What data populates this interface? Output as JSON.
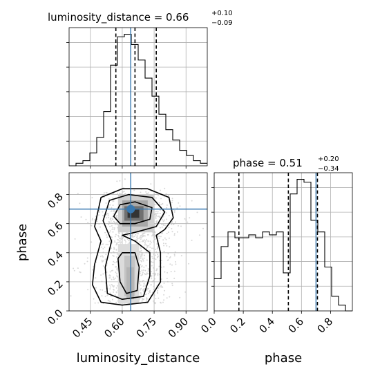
{
  "chart_data": {
    "type": "corner",
    "parameters": [
      "luminosity_distance",
      "phase"
    ],
    "titles": [
      {
        "name": "luminosity_distance",
        "value": "0.66",
        "plus": "+0.10",
        "minus": "−0.09",
        "prefix": "luminosity_distance = 0.66"
      },
      {
        "name": "phase",
        "value": "0.51",
        "plus": "+0.20",
        "minus": "−0.34",
        "prefix": "phase = 0.51"
      }
    ],
    "xlabels": [
      "luminosity_distance",
      "phase"
    ],
    "ylabel": "phase",
    "truths": {
      "luminosity_distance": 0.64,
      "phase": 0.7
    },
    "colors": {
      "truth": "#3878b0",
      "hist": "#000000",
      "scatter": "#bdbdbd"
    },
    "grid": true,
    "lum_hist": {
      "xlim": [
        0.35,
        1.0
      ],
      "quantiles": [
        0.57,
        0.66,
        0.76
      ],
      "xticks": [
        "0.45",
        "0.60",
        "0.75",
        "0.90"
      ],
      "tickvals": [
        0.45,
        0.6,
        0.75,
        0.9
      ],
      "edges": [
        0.35,
        0.3825,
        0.415,
        0.4475,
        0.48,
        0.5125,
        0.545,
        0.5775,
        0.61,
        0.6425,
        0.675,
        0.7075,
        0.74,
        0.7725,
        0.805,
        0.8375,
        0.87,
        0.9025,
        0.935,
        0.9675,
        1.0
      ],
      "counts": [
        0,
        2,
        4,
        10,
        22,
        42,
        78,
        100,
        102,
        94,
        82,
        68,
        54,
        40,
        28,
        20,
        12,
        8,
        4,
        2
      ]
    },
    "phase_hist": {
      "xlim": [
        0.0,
        0.95
      ],
      "quantiles": [
        0.17,
        0.51,
        0.71
      ],
      "xticks": [
        "0.0",
        "0.2",
        "0.4",
        "0.6",
        "0.8"
      ],
      "tickvals": [
        0.0,
        0.2,
        0.4,
        0.6,
        0.8
      ],
      "edges": [
        0.0,
        0.0475,
        0.095,
        0.1425,
        0.19,
        0.2375,
        0.285,
        0.3325,
        0.38,
        0.4275,
        0.475,
        0.5225,
        0.57,
        0.6175,
        0.665,
        0.7125,
        0.76,
        0.8075,
        0.855,
        0.9025,
        0.95
      ],
      "counts": [
        22,
        44,
        54,
        50,
        50,
        52,
        50,
        54,
        52,
        54,
        26,
        80,
        90,
        88,
        62,
        54,
        30,
        10,
        4,
        0
      ]
    },
    "joint": {
      "xlim": [
        0.35,
        1.0
      ],
      "ylim": [
        0.0,
        0.95
      ],
      "xticks": [
        "0.45",
        "0.60",
        "0.75",
        "0.90"
      ],
      "yticks": [
        "0.0",
        "0.2",
        "0.4",
        "0.6",
        "0.8"
      ],
      "ytickvals": [
        0.0,
        0.2,
        0.4,
        0.6,
        0.8
      ],
      "contour_levels": [
        "outer",
        "middle",
        "inner"
      ]
    }
  }
}
